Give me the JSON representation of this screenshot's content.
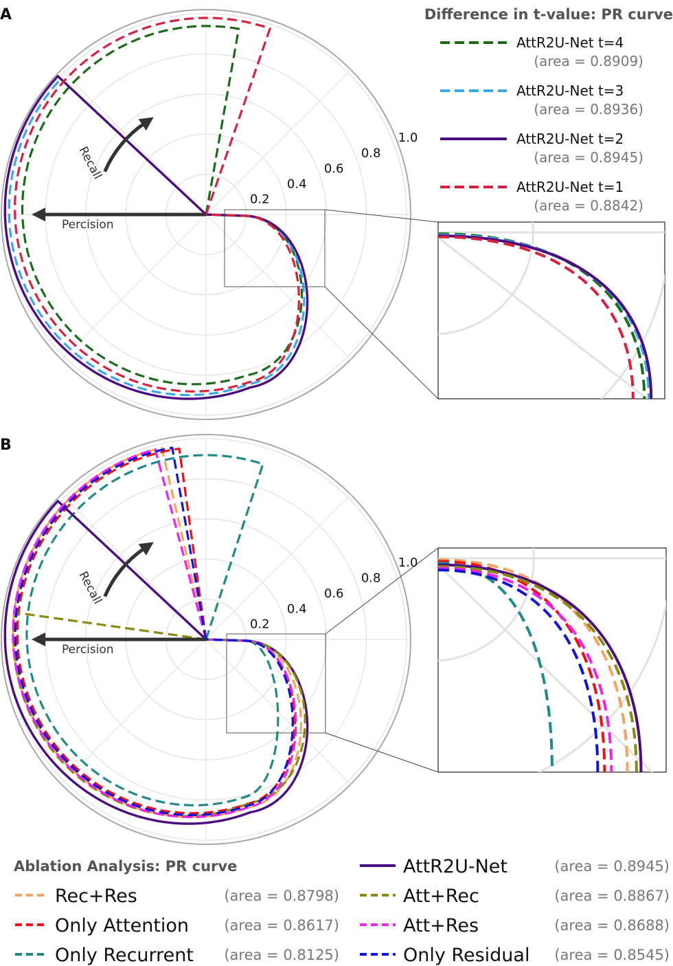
{
  "chart_data": [
    {
      "panel": "A",
      "type": "line",
      "projection": "polar",
      "title": "Difference in t-value: PR curve",
      "radial_ticks": [
        "0.2",
        "0.4",
        "0.6",
        "0.8",
        "1.0"
      ],
      "axis_arrows": {
        "x": "Percision",
        "y": "Recall"
      },
      "series": [
        {
          "name": "AttR2U-Net t=4",
          "area": "(area = 0.8909)",
          "color": "#1a6b1a",
          "dash": "dashed"
        },
        {
          "name": "AttR2U-Net t=3",
          "area": "(area = 0.8936)",
          "color": "#3aa8ef",
          "dash": "dashed"
        },
        {
          "name": "AttR2U-Net t=2",
          "area": "(area = 0.8945)",
          "color": "#4b0e82",
          "dash": "solid"
        },
        {
          "name": "AttR2U-Net t=1",
          "area": "(area = 0.8842)",
          "color": "#d9213f",
          "dash": "dashed"
        }
      ]
    },
    {
      "panel": "B",
      "type": "line",
      "projection": "polar",
      "title": "Ablation Analysis: PR curve",
      "radial_ticks": [
        "0.2",
        "0.4",
        "0.6",
        "0.8",
        "1.0"
      ],
      "axis_arrows": {
        "x": "Percision",
        "y": "Recall"
      },
      "series": [
        {
          "name": "Rec+Res",
          "area": "(area = 0.8798)",
          "color": "#f4a460",
          "dash": "dashed"
        },
        {
          "name": "Only Attention",
          "area": "(area = 0.8617)",
          "color": "#ee1111",
          "dash": "dashed"
        },
        {
          "name": "Only Recurrent",
          "area": "(area = 0.8125)",
          "color": "#1f8a8a",
          "dash": "dashed"
        },
        {
          "name": "AttR2U-Net",
          "area": "(area = 0.8945)",
          "color": "#4b0e82",
          "dash": "solid"
        },
        {
          "name": "Att+Rec",
          "area": "(area = 0.8867)",
          "color": "#8a8a10",
          "dash": "dashed"
        },
        {
          "name": "Att+Res",
          "area": "(area = 0.8688)",
          "color": "#ee22ee",
          "dash": "dashed"
        },
        {
          "name": "Only Residual",
          "area": "(area = 0.8545)",
          "color": "#1212dd",
          "dash": "dashed"
        }
      ]
    }
  ]
}
